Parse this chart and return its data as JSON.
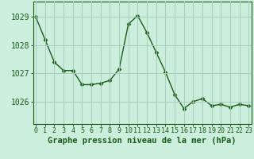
{
  "x": [
    0,
    1,
    2,
    3,
    4,
    5,
    6,
    7,
    8,
    9,
    10,
    11,
    12,
    13,
    14,
    15,
    16,
    17,
    18,
    19,
    20,
    21,
    22,
    23
  ],
  "y": [
    1029.0,
    1028.2,
    1027.4,
    1027.1,
    1027.1,
    1026.6,
    1026.6,
    1026.65,
    1026.75,
    1027.15,
    1028.75,
    1029.05,
    1028.45,
    1027.75,
    1027.05,
    1026.25,
    1025.75,
    1026.0,
    1026.1,
    1025.85,
    1025.9,
    1025.8,
    1025.9,
    1025.85
  ],
  "line_color": "#1a5c1a",
  "marker": "D",
  "marker_size": 2.5,
  "background_color": "#cceedd",
  "grid_color": "#aaccbb",
  "xlabel": "Graphe pression niveau de la mer (hPa)",
  "yticks": [
    1026,
    1027,
    1028,
    1029
  ],
  "ylim_min": 1025.2,
  "ylim_max": 1029.55,
  "xlim_min": -0.3,
  "xlim_max": 23.3,
  "xlabel_fontsize": 7.5,
  "ytick_fontsize": 7,
  "xtick_fontsize": 6
}
